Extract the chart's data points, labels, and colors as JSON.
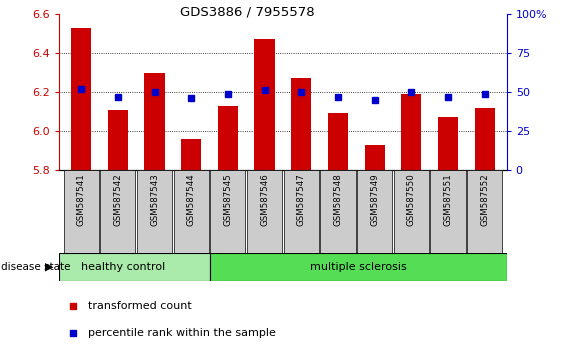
{
  "title": "GDS3886 / 7955578",
  "samples": [
    "GSM587541",
    "GSM587542",
    "GSM587543",
    "GSM587544",
    "GSM587545",
    "GSM587546",
    "GSM587547",
    "GSM587548",
    "GSM587549",
    "GSM587550",
    "GSM587551",
    "GSM587552"
  ],
  "red_values": [
    6.53,
    6.11,
    6.3,
    5.96,
    6.13,
    6.47,
    6.27,
    6.09,
    5.93,
    6.19,
    6.07,
    6.12
  ],
  "blue_values": [
    52,
    47,
    50,
    46,
    49,
    51,
    50,
    47,
    45,
    50,
    47,
    49
  ],
  "ylim_left": [
    5.8,
    6.6
  ],
  "ylim_right": [
    0,
    100
  ],
  "yticks_left": [
    5.8,
    6.0,
    6.2,
    6.4,
    6.6
  ],
  "yticks_right": [
    0,
    25,
    50,
    75,
    100
  ],
  "ytick_labels_right": [
    "0",
    "25",
    "50",
    "75",
    "100%"
  ],
  "red_color": "#cc0000",
  "blue_color": "#0000cc",
  "bar_width": 0.55,
  "healthy_label": "healthy control",
  "ms_label": "multiple sclerosis",
  "disease_state_label": "disease state",
  "legend_red": "transformed count",
  "legend_blue": "percentile rank within the sample",
  "healthy_color": "#aaeaaa",
  "ms_color": "#55dd55",
  "tick_bg": "#cccccc",
  "grid_vals": [
    6.0,
    6.2,
    6.4
  ],
  "healthy_count": 4,
  "n_samples": 12
}
